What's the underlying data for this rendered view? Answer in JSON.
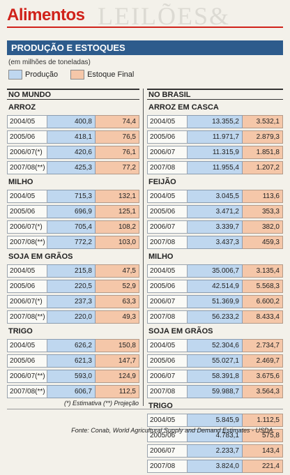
{
  "header": {
    "title": "Alimentos",
    "section_title": "PRODUÇÃO E ESTOQUES",
    "units": "(em milhões de toneladas)",
    "legend": {
      "production": "Produção",
      "stock": "Estoque Final"
    },
    "colors": {
      "title": "#d0221a",
      "section": "#2d5b8c",
      "production": "#bfd7ef",
      "stock": "#f5c7a9"
    }
  },
  "world": {
    "heading": "NO MUNDO",
    "groups": [
      {
        "name": "ARROZ",
        "rows": [
          {
            "year": "2004/05",
            "prod": "400,8",
            "stock": "74,4"
          },
          {
            "year": "2005/06",
            "prod": "418,1",
            "stock": "76,5"
          },
          {
            "year": "2006/07(*)",
            "prod": "420,6",
            "stock": "76,1"
          },
          {
            "year": "2007/08(**)",
            "prod": "425,3",
            "stock": "77,2"
          }
        ]
      },
      {
        "name": "MILHO",
        "rows": [
          {
            "year": "2004/05",
            "prod": "715,3",
            "stock": "132,1"
          },
          {
            "year": "2005/06",
            "prod": "696,9",
            "stock": "125,1"
          },
          {
            "year": "2006/07(*)",
            "prod": "705,4",
            "stock": "108,2"
          },
          {
            "year": "2007/08(**)",
            "prod": "772,2",
            "stock": "103,0"
          }
        ]
      },
      {
        "name": "SOJA EM GRÃOS",
        "rows": [
          {
            "year": "2004/05",
            "prod": "215,8",
            "stock": "47,5"
          },
          {
            "year": "2005/06",
            "prod": "220,5",
            "stock": "52,9"
          },
          {
            "year": "2006/07(*)",
            "prod": "237,3",
            "stock": "63,3"
          },
          {
            "year": "2007/08(**)",
            "prod": "220,0",
            "stock": "49,3"
          }
        ]
      },
      {
        "name": "TRIGO",
        "rows": [
          {
            "year": "2004/05",
            "prod": "626,2",
            "stock": "150,8"
          },
          {
            "year": "2005/06",
            "prod": "621,3",
            "stock": "147,7"
          },
          {
            "year": "2006/07(**)",
            "prod": "593,0",
            "stock": "124,9"
          },
          {
            "year": "2007/08(**)",
            "prod": "606,7",
            "stock": "112,5"
          }
        ]
      }
    ]
  },
  "brazil": {
    "heading": "NO BRASIL",
    "groups": [
      {
        "name": "ARROZ EM CASCA",
        "rows": [
          {
            "year": "2004/05",
            "prod": "13.355,2",
            "stock": "3.532,1"
          },
          {
            "year": "2005/06",
            "prod": "11.971,7",
            "stock": "2.879,3"
          },
          {
            "year": "2006/07",
            "prod": "11.315,9",
            "stock": "1.851,8"
          },
          {
            "year": "2007/08",
            "prod": "11.955,4",
            "stock": "1.207,2"
          }
        ]
      },
      {
        "name": "FEIJÃO",
        "rows": [
          {
            "year": "2004/05",
            "prod": "3.045,5",
            "stock": "113,6"
          },
          {
            "year": "2005/06",
            "prod": "3.471,2",
            "stock": "353,3"
          },
          {
            "year": "2006/07",
            "prod": "3.339,7",
            "stock": "382,0"
          },
          {
            "year": "2007/08",
            "prod": "3.437,3",
            "stock": "459,3"
          }
        ]
      },
      {
        "name": "MILHO",
        "rows": [
          {
            "year": "2004/05",
            "prod": "35.006,7",
            "stock": "3.135,4"
          },
          {
            "year": "2005/06",
            "prod": "42.514,9",
            "stock": "5.568,3"
          },
          {
            "year": "2006/07",
            "prod": "51.369,9",
            "stock": "6.600,2"
          },
          {
            "year": "2007/08",
            "prod": "56.233,2",
            "stock": "8.433,4"
          }
        ]
      },
      {
        "name": "SOJA EM GRÃOS",
        "rows": [
          {
            "year": "2004/05",
            "prod": "52.304,6",
            "stock": "2.734,7"
          },
          {
            "year": "2005/06",
            "prod": "55.027,1",
            "stock": "2.469,7"
          },
          {
            "year": "2006/07",
            "prod": "58.391,8",
            "stock": "3.675,6"
          },
          {
            "year": "2007/08",
            "prod": "59.988,7",
            "stock": "3.564,3"
          }
        ]
      },
      {
        "name": "TRIGO",
        "rows": [
          {
            "year": "2004/05",
            "prod": "5.845,9",
            "stock": "1.112,5"
          },
          {
            "year": "2005/06",
            "prod": "4.783,1",
            "stock": "575,8"
          },
          {
            "year": "2006/07",
            "prod": "2.233,7",
            "stock": "143,4"
          },
          {
            "year": "2007/08",
            "prod": "3.824,0",
            "stock": "221,4"
          }
        ]
      }
    ]
  },
  "footnote": "(*) Estimativa (**) Projeção",
  "source": "Fonte: Conab, World Agricultural Supply and Demand Estimates - USDA."
}
